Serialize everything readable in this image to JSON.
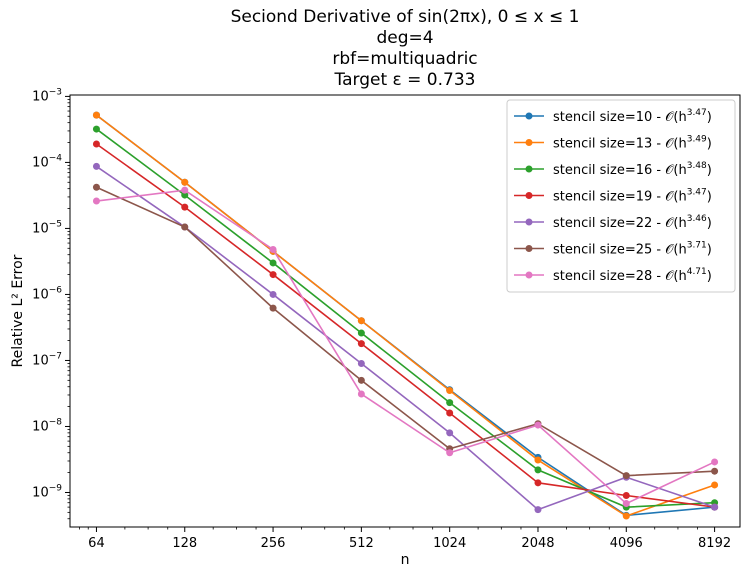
{
  "chart_data": {
    "type": "line",
    "title_lines": [
      "Seciond Derivative of sin(2πx), 0 ≤ x ≤ 1",
      "deg=4",
      "rbf=multiquadric",
      "Target ε = 0.733"
    ],
    "xlabel": "n",
    "ylabel": "Relative L² Error",
    "x_scale": "log2",
    "y_scale": "log10",
    "x": [
      64,
      128,
      256,
      512,
      1024,
      2048,
      4096,
      8192
    ],
    "x_tick_labels": [
      "64",
      "128",
      "256",
      "512",
      "1024",
      "2048",
      "4096",
      "8192"
    ],
    "y_tick_labels": [
      {
        "base": "10",
        "exp": "−9",
        "value": 1e-09
      },
      {
        "base": "10",
        "exp": "−8",
        "value": 1e-08
      },
      {
        "base": "10",
        "exp": "−7",
        "value": 1e-07
      },
      {
        "base": "10",
        "exp": "−6",
        "value": 1e-06
      },
      {
        "base": "10",
        "exp": "−5",
        "value": 1e-05
      },
      {
        "base": "10",
        "exp": "−4",
        "value": 0.0001
      },
      {
        "base": "10",
        "exp": "−3",
        "value": 0.001
      }
    ],
    "xlim": [
      52,
      10000
    ],
    "ylim": [
      3e-10,
      0.00105
    ],
    "grid": false,
    "legend_position": "top-right",
    "series": [
      {
        "name": "stencil size=10 - 𝒪(h^3.47)",
        "label": "stencil size=10 - ",
        "order": "3.47",
        "color": "#1f77b4",
        "values": [
          0.00052,
          5e-05,
          4.5e-06,
          4e-07,
          3.6e-08,
          3.4e-09,
          4.5e-10,
          6e-10
        ]
      },
      {
        "name": "stencil size=13 - 𝒪(h^3.49)",
        "label": "stencil size=13 - ",
        "order": "3.49",
        "color": "#ff7f0e",
        "values": [
          0.00052,
          5e-05,
          4.5e-06,
          4e-07,
          3.5e-08,
          3.1e-09,
          4.4e-10,
          1.3e-09
        ]
      },
      {
        "name": "stencil size=16 - 𝒪(h^3.48)",
        "label": "stencil size=16 - ",
        "order": "3.48",
        "color": "#2ca02c",
        "values": [
          0.00032,
          3.2e-05,
          3e-06,
          2.6e-07,
          2.3e-08,
          2.2e-09,
          6e-10,
          7e-10
        ]
      },
      {
        "name": "stencil size=19 - 𝒪(h^3.47)",
        "label": "stencil size=19 - ",
        "order": "3.47",
        "color": "#d62728",
        "values": [
          0.00019,
          2.1e-05,
          2e-06,
          1.8e-07,
          1.6e-08,
          1.4e-09,
          9e-10,
          6e-10
        ]
      },
      {
        "name": "stencil size=22 - 𝒪(h^3.46)",
        "label": "stencil size=22 - ",
        "order": "3.46",
        "color": "#9467bd",
        "values": [
          8.7e-05,
          1.05e-05,
          1e-06,
          9e-08,
          8e-09,
          5.5e-10,
          1.7e-09,
          6e-10
        ]
      },
      {
        "name": "stencil size=25 - 𝒪(h^3.71)",
        "label": "stencil size=25 - ",
        "order": "3.71",
        "color": "#8c564b",
        "values": [
          4.2e-05,
          1.05e-05,
          6.2e-07,
          5e-08,
          4.6e-09,
          1.1e-08,
          1.8e-09,
          2.1e-09
        ]
      },
      {
        "name": "stencil size=28 - 𝒪(h^4.71)",
        "label": "stencil size=28 - ",
        "order": "4.71",
        "color": "#e377c2",
        "values": [
          2.6e-05,
          3.8e-05,
          4.8e-06,
          3.1e-08,
          4e-09,
          1.05e-08,
          6.8e-10,
          2.9e-09
        ]
      }
    ]
  }
}
